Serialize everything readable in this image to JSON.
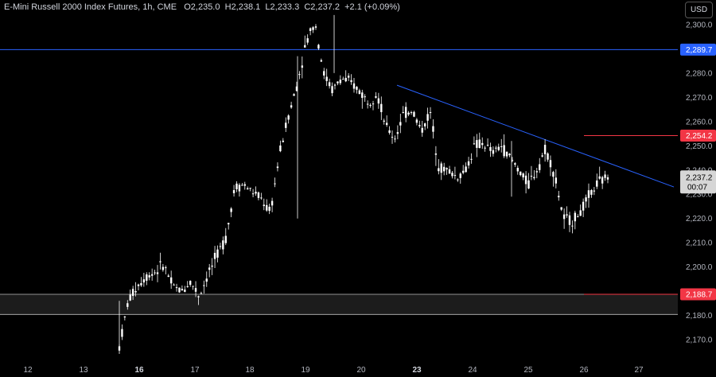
{
  "header": {
    "title": "E-Mini Russell 2000 Index Futures, 1h, CME",
    "open_label": "O",
    "open": "2,235.0",
    "high_label": "H",
    "high": "2,238.1",
    "low_label": "L",
    "low": "2,233.3",
    "close_label": "C",
    "close": "2,237.2",
    "change": "+2.1 (+0.09%)"
  },
  "currency_button": "USD",
  "current_price": {
    "price": "2,237.2",
    "countdown": "00:07"
  },
  "chart_data": {
    "type": "candlestick",
    "symbol": "E-Mini Russell 2000 Index Futures",
    "interval": "1h",
    "exchange": "CME",
    "colors": {
      "candle": "#ffffff",
      "background": "#000000",
      "horizontal_line": "#2962ff",
      "trendline": "#2962ff",
      "level_line": "#f23645",
      "zone_fill": "#1c1c1c"
    },
    "y_axis": {
      "min": 2163,
      "max": 2307,
      "ticks": [
        2300,
        2290,
        2280,
        2270,
        2260,
        2250,
        2240,
        2230,
        2220,
        2210,
        2200,
        2190,
        2180,
        2170
      ],
      "tick_labels": [
        "2,300.0",
        "2,290.0",
        "2,280.0",
        "2,270.0",
        "2,260.0",
        "2,250.0",
        "2,240.0",
        "2,230.0",
        "2,220.0",
        "2,210.0",
        "2,200.0",
        "2,190.0",
        "2,180.0",
        "2,170.0"
      ]
    },
    "x_axis": {
      "labels": [
        "12",
        "13",
        "16",
        "17",
        "18",
        "19",
        "20",
        "23",
        "24",
        "25",
        "26",
        "27"
      ],
      "bold": [
        "16",
        "23"
      ]
    },
    "levels": [
      {
        "kind": "horizontal",
        "price": 2289.7,
        "label": "2,289.7",
        "color": "#2962ff"
      },
      {
        "kind": "short_line",
        "price": 2254.2,
        "label": "2,254.2",
        "color": "#f23645"
      },
      {
        "kind": "short_line",
        "price": 2188.7,
        "label": "2,188.7",
        "color": "#f23645"
      }
    ],
    "zone": {
      "top": 2188.7,
      "bottom": 2180.4
    },
    "trendline": {
      "from": {
        "date": "20",
        "price": 2275
      },
      "to": {
        "date": "26",
        "price": 2233
      }
    },
    "price_path": [
      {
        "date": "16",
        "price": 2167
      },
      {
        "date": "16",
        "price": 2186
      },
      {
        "date": "16",
        "price": 2192
      },
      {
        "date": "16",
        "price": 2196
      },
      {
        "date": "16",
        "price": 2198
      },
      {
        "date": "16",
        "price": 2201
      },
      {
        "date": "17",
        "price": 2192
      },
      {
        "date": "17",
        "price": 2190
      },
      {
        "date": "17",
        "price": 2194
      },
      {
        "date": "17",
        "price": 2188
      },
      {
        "date": "17",
        "price": 2197
      },
      {
        "date": "17",
        "price": 2205
      },
      {
        "date": "17",
        "price": 2212
      },
      {
        "date": "18",
        "price": 2233
      },
      {
        "date": "18",
        "price": 2234
      },
      {
        "date": "18",
        "price": 2231
      },
      {
        "date": "18",
        "price": 2228
      },
      {
        "date": "19",
        "price": 2222
      },
      {
        "date": "19",
        "price": 2246
      },
      {
        "date": "19",
        "price": 2262
      },
      {
        "date": "19",
        "price": 2275
      },
      {
        "date": "19",
        "price": 2292
      },
      {
        "date": "19",
        "price": 2302
      },
      {
        "date": "19",
        "price": 2280
      },
      {
        "date": "20",
        "price": 2273
      },
      {
        "date": "20",
        "price": 2278
      },
      {
        "date": "20",
        "price": 2276
      },
      {
        "date": "20",
        "price": 2273
      },
      {
        "date": "20",
        "price": 2268
      },
      {
        "date": "20",
        "price": 2272
      },
      {
        "date": "23",
        "price": 2258
      },
      {
        "date": "23",
        "price": 2253
      },
      {
        "date": "23",
        "price": 2263
      },
      {
        "date": "23",
        "price": 2265
      },
      {
        "date": "23",
        "price": 2256
      },
      {
        "date": "23",
        "price": 2264
      },
      {
        "date": "24",
        "price": 2241
      },
      {
        "date": "24",
        "price": 2240
      },
      {
        "date": "24",
        "price": 2237
      },
      {
        "date": "24",
        "price": 2240
      },
      {
        "date": "24",
        "price": 2250
      },
      {
        "date": "24",
        "price": 2251
      },
      {
        "date": "25",
        "price": 2247
      },
      {
        "date": "25",
        "price": 2250
      },
      {
        "date": "25",
        "price": 2245
      },
      {
        "date": "25",
        "price": 2240
      },
      {
        "date": "25",
        "price": 2234
      },
      {
        "date": "25",
        "price": 2240
      },
      {
        "date": "25",
        "price": 2249
      },
      {
        "date": "26",
        "price": 2238
      },
      {
        "date": "26",
        "price": 2220
      },
      {
        "date": "26",
        "price": 2219
      },
      {
        "date": "26",
        "price": 2223
      },
      {
        "date": "26",
        "price": 2230
      },
      {
        "date": "26",
        "price": 2235
      },
      {
        "date": "26",
        "price": 2237.2
      }
    ]
  }
}
